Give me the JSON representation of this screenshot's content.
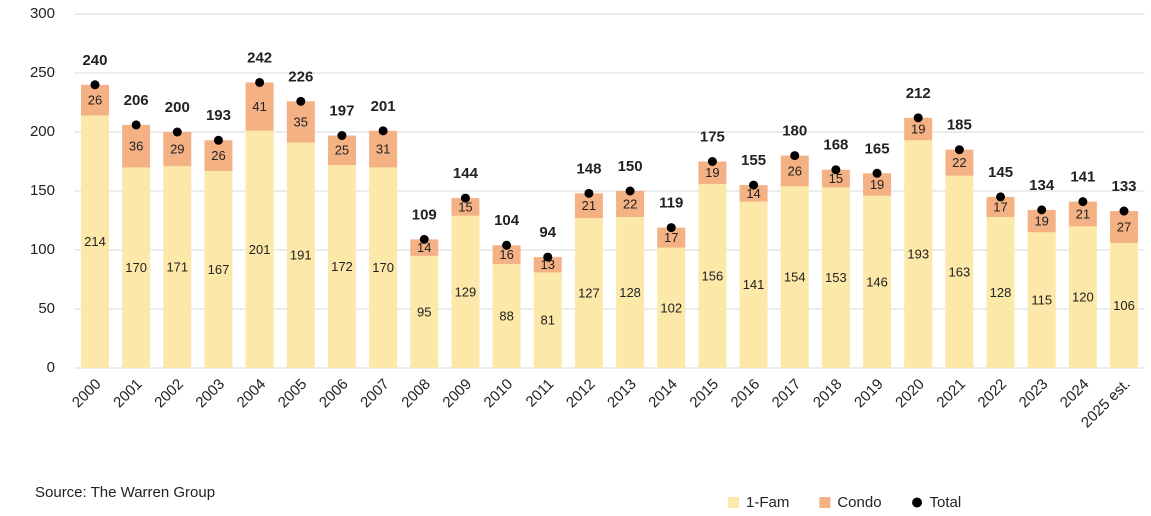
{
  "chart_data": {
    "type": "bar",
    "stacked": true,
    "categories": [
      "2000",
      "2001",
      "2002",
      "2003",
      "2004",
      "2005",
      "2006",
      "2007",
      "2008",
      "2009",
      "2010",
      "2011",
      "2012",
      "2013",
      "2014",
      "2015",
      "2016",
      "2017",
      "2018",
      "2019",
      "2020",
      "2021",
      "2022",
      "2023",
      "2024",
      "2025 est."
    ],
    "series": [
      {
        "name": "1-Fam",
        "type": "bar",
        "color": "#fce8a8",
        "values": [
          214,
          170,
          171,
          167,
          201,
          191,
          172,
          170,
          95,
          129,
          88,
          81,
          127,
          128,
          102,
          156,
          141,
          154,
          153,
          146,
          193,
          163,
          128,
          115,
          120,
          106
        ]
      },
      {
        "name": "Condo",
        "type": "bar",
        "color": "#f4b183",
        "values": [
          26,
          36,
          29,
          26,
          41,
          35,
          25,
          31,
          14,
          15,
          16,
          13,
          21,
          22,
          17,
          19,
          14,
          26,
          15,
          19,
          19,
          22,
          17,
          19,
          21,
          27
        ]
      },
      {
        "name": "Total",
        "type": "scatter",
        "color": "#000000",
        "values": [
          240,
          206,
          200,
          193,
          242,
          226,
          197,
          201,
          109,
          144,
          104,
          94,
          148,
          150,
          119,
          175,
          155,
          180,
          168,
          165,
          212,
          185,
          145,
          134,
          141,
          133
        ]
      }
    ],
    "ylim": [
      0,
      300
    ],
    "yticks": [
      0,
      50,
      100,
      150,
      200,
      250,
      300
    ],
    "grid": true,
    "legend": "bottom",
    "source": "Source: The Warren Group"
  }
}
